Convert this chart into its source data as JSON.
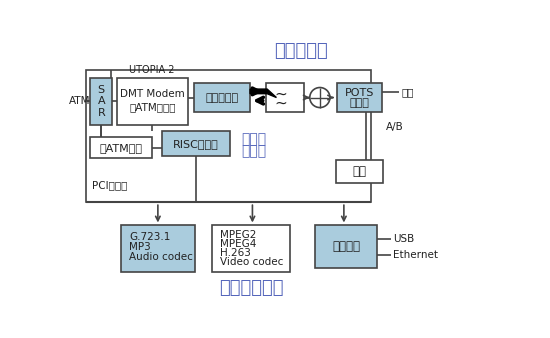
{
  "title_top": "通訊子系統",
  "title_bottom": "多媒體子系統",
  "label_atm": "ATM",
  "label_utopia": "UTOPIA 2",
  "label_pci": "PCI匯流排",
  "label_sar": "S\nA\nR",
  "label_dmt": "DMT Modem\n和ATM調幅器",
  "label_comm": "通訊子系統",
  "label_pots": "POTS\n分離器",
  "label_nonatm": "非ATM位流",
  "label_risc": "RISC處理器",
  "label_proc1": "處理器",
  "label_proc2": "子系統",
  "label_phone": "電話",
  "label_linelu": "線路",
  "label_ab": "A/B",
  "label_g723": "G.723.1\nMP3\nAudio codec",
  "label_mpeg": "MPEG2\nMPEG4\nH.263\nVideo codec",
  "label_bridge": "橋接晶片",
  "label_usb": "USB",
  "label_ethernet": "Ethernet",
  "title_color": "#5566bb",
  "bg_color": "#ffffff",
  "box_fill_blue": "#aaccdd",
  "box_fill_white": "#ffffff",
  "box_edge": "#444444",
  "text_black": "#222222",
  "text_blue": "#5566bb",
  "figsize": [
    5.5,
    3.38
  ],
  "dpi": 100
}
